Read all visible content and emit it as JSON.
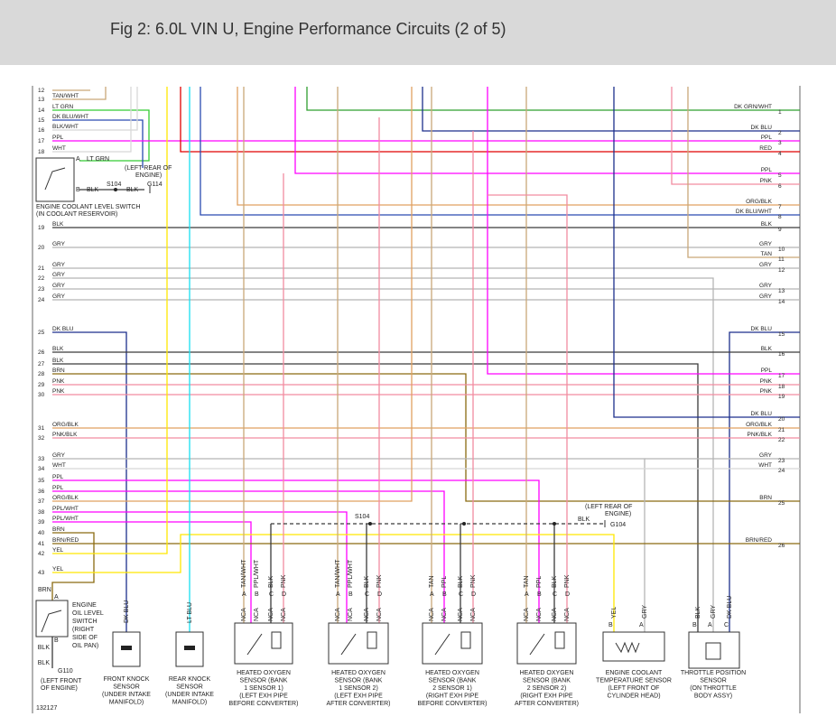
{
  "header": {
    "title": "Fig 2: 6.0L VIN U, Engine Performance Circuits (2 of 5)"
  },
  "diagram": {
    "left_pins": [
      {
        "pin": "12"
      },
      {
        "pin": "13",
        "wire": "TAN/WHT"
      },
      {
        "pin": "14",
        "wire": "LT GRN"
      },
      {
        "pin": "15",
        "wire": "DK BLU/WHT"
      },
      {
        "pin": "16",
        "wire": "BLK/WHT"
      },
      {
        "pin": "17",
        "wire": "PPL"
      },
      {
        "pin": "18",
        "wire": "WHT"
      },
      {
        "pin": "19",
        "wire": "BLK"
      },
      {
        "pin": "20",
        "wire": "GRY"
      },
      {
        "pin": "21",
        "wire": "GRY"
      },
      {
        "pin": "22",
        "wire": "GRY"
      },
      {
        "pin": "23",
        "wire": "GRY"
      },
      {
        "pin": "24",
        "wire": "GRY"
      },
      {
        "pin": "25",
        "wire": "DK BLU"
      },
      {
        "pin": "26",
        "wire": "BLK"
      },
      {
        "pin": "27",
        "wire": "BLK"
      },
      {
        "pin": "28",
        "wire": "BRN"
      },
      {
        "pin": "29",
        "wire": "PNK"
      },
      {
        "pin": "30",
        "wire": "PNK"
      },
      {
        "pin": "31",
        "wire": "ORG/BLK"
      },
      {
        "pin": "32",
        "wire": "PNK/BLK"
      },
      {
        "pin": "33",
        "wire": "GRY"
      },
      {
        "pin": "34",
        "wire": "WHT"
      },
      {
        "pin": "35",
        "wire": "PPL"
      },
      {
        "pin": "36",
        "wire": "PPL"
      },
      {
        "pin": "37",
        "wire": "ORG/BLK"
      },
      {
        "pin": "38",
        "wire": "PPL/WHT"
      },
      {
        "pin": "39",
        "wire": "PPL/WHT"
      },
      {
        "pin": "40",
        "wire": "BRN"
      },
      {
        "pin": "41",
        "wire": "BRN/RED"
      },
      {
        "pin": "42",
        "wire": "YEL"
      },
      {
        "pin": "43",
        "wire": "YEL"
      }
    ],
    "right_pins": [
      {
        "pin": "1",
        "wire": "DK GRN/WHT"
      },
      {
        "pin": "2",
        "wire": "DK BLU"
      },
      {
        "pin": "3",
        "wire": "PPL"
      },
      {
        "pin": "4",
        "wire": "RED"
      },
      {
        "pin": "5",
        "wire": "PPL"
      },
      {
        "pin": "6",
        "wire": "PNK"
      },
      {
        "pin": "7",
        "wire": "ORG/BLK"
      },
      {
        "pin": "8",
        "wire": "DK BLU/WHT"
      },
      {
        "pin": "9",
        "wire": "BLK"
      },
      {
        "pin": "10",
        "wire": "GRY"
      },
      {
        "pin": "11",
        "wire": "TAN"
      },
      {
        "pin": "12",
        "wire": "GRY"
      },
      {
        "pin": "13",
        "wire": "GRY"
      },
      {
        "pin": "14",
        "wire": "GRY"
      },
      {
        "pin": "15",
        "wire": "DK BLU"
      },
      {
        "pin": "16",
        "wire": "BLK"
      },
      {
        "pin": "17",
        "wire": "PPL"
      },
      {
        "pin": "18",
        "wire": "PNK"
      },
      {
        "pin": "19",
        "wire": "PNK"
      },
      {
        "pin": "20",
        "wire": "DK BLU"
      },
      {
        "pin": "21",
        "wire": "ORG/BLK"
      },
      {
        "pin": "22",
        "wire": "PNK/BLK"
      },
      {
        "pin": "23",
        "wire": "GRY"
      },
      {
        "pin": "24",
        "wire": "WHT"
      },
      {
        "pin": "25",
        "wire": "BRN"
      },
      {
        "pin": "26",
        "wire": "BRN/RED"
      }
    ],
    "coolant_level_switch": {
      "label": [
        "ENGINE COOLANT LEVEL SWITCH",
        "(IN COOLANT RESERVOIR)"
      ],
      "pin_a": "A",
      "wire_a": "LT GRN",
      "pin_b": "B",
      "wire_b": "BLK",
      "splice": "S104",
      "ground_wire": "BLK",
      "ground": "G114",
      "ground_location": [
        "(LEFT REAR OF",
        "ENGINE)"
      ]
    },
    "oil_level_switch": {
      "label": [
        "ENGINE",
        "OIL LEVEL",
        "SWITCH",
        "(RIGHT",
        "SIDE OF",
        "OIL PAN)"
      ],
      "wire_a": "BRN",
      "pin_a": "A",
      "pin_b": "B",
      "wire_b": "BLK",
      "ground_wire": "BLK",
      "ground": "G110",
      "ground_location": [
        "(LEFT FRONT",
        "OF ENGINE)"
      ]
    },
    "front_knock_sensor": {
      "wire": "DK BLU",
      "label": [
        "FRONT KNOCK",
        "SENSOR",
        "(UNDER INTAKE",
        "MANIFOLD)"
      ]
    },
    "rear_knock_sensor": {
      "wire": "LT BLU",
      "label": [
        "REAR KNOCK",
        "SENSOR",
        "(UNDER INTAKE",
        "MANIFOLD)"
      ]
    },
    "oxygen_sensors": [
      {
        "pins": [
          {
            "pin": "A",
            "wire": "TAN/WHT",
            "code": "NCA"
          },
          {
            "pin": "B",
            "wire": "PPL/WHT",
            "code": "NCA"
          },
          {
            "pin": "C",
            "wire": "BLK",
            "code": "NCA"
          },
          {
            "pin": "D",
            "wire": "PNK",
            "code": "NCA"
          }
        ],
        "label": [
          "HEATED OXYGEN",
          "SENSOR (BANK",
          "1 SENSOR 1)",
          "(LEFT EXH PIPE",
          "BEFORE CONVERTER)"
        ]
      },
      {
        "pins": [
          {
            "pin": "A",
            "wire": "TAN/WHT",
            "code": "NCA"
          },
          {
            "pin": "B",
            "wire": "PPL/WHT",
            "code": "NCA"
          },
          {
            "pin": "C",
            "wire": "BLK",
            "code": "NCA"
          },
          {
            "pin": "D",
            "wire": "PNK",
            "code": "NCA"
          }
        ],
        "label": [
          "HEATED OXYGEN",
          "SENSOR (BANK",
          "1 SENSOR 2)",
          "(LEFT EXH PIPE",
          "AFTER CONVERTER)"
        ]
      },
      {
        "pins": [
          {
            "pin": "A",
            "wire": "TAN",
            "code": "NCA"
          },
          {
            "pin": "B",
            "wire": "PPL",
            "code": "NCA"
          },
          {
            "pin": "C",
            "wire": "BLK",
            "code": "NCA"
          },
          {
            "pin": "D",
            "wire": "PNK",
            "code": "NCA"
          }
        ],
        "label": [
          "HEATED OXYGEN",
          "SENSOR (BANK",
          "2 SENSOR 1)",
          "(RIGHT EXH PIPE",
          "BEFORE CONVERTER)"
        ]
      },
      {
        "pins": [
          {
            "pin": "A",
            "wire": "TAN",
            "code": "NCA"
          },
          {
            "pin": "B",
            "wire": "PPL",
            "code": "NCA"
          },
          {
            "pin": "C",
            "wire": "BLK",
            "code": "NCA"
          },
          {
            "pin": "D",
            "wire": "PNK",
            "code": "NCA"
          }
        ],
        "label": [
          "HEATED OXYGEN",
          "SENSOR (BANK",
          "2 SENSOR 2)",
          "(RIGHT EXH PIPE",
          "AFTER CONVERTER)"
        ]
      }
    ],
    "coolant_temp_sensor": {
      "pins": [
        {
          "pin": "B",
          "wire": "YEL"
        },
        {
          "pin": "A",
          "wire": "GRY"
        }
      ],
      "label": [
        "ENGINE COOLANT",
        "TEMPERATURE SENSOR",
        "(LEFT FRONT OF",
        "CYLINDER HEAD)"
      ]
    },
    "throttle_position_sensor": {
      "pins": [
        {
          "pin": "B",
          "wire": "BLK"
        },
        {
          "pin": "A",
          "wire": "GRY"
        },
        {
          "pin": "C",
          "wire": "DK BLU"
        }
      ],
      "label": [
        "THROTTLE POSITION",
        "SENSOR",
        "(ON THROTTLE",
        "BODY ASSY)"
      ]
    },
    "ground_splice": {
      "splice": "S104",
      "location": [
        "(LEFT REAR OF",
        "ENGINE)"
      ],
      "wire": "BLK",
      "ground": "G104"
    },
    "figure_code": "132127"
  }
}
